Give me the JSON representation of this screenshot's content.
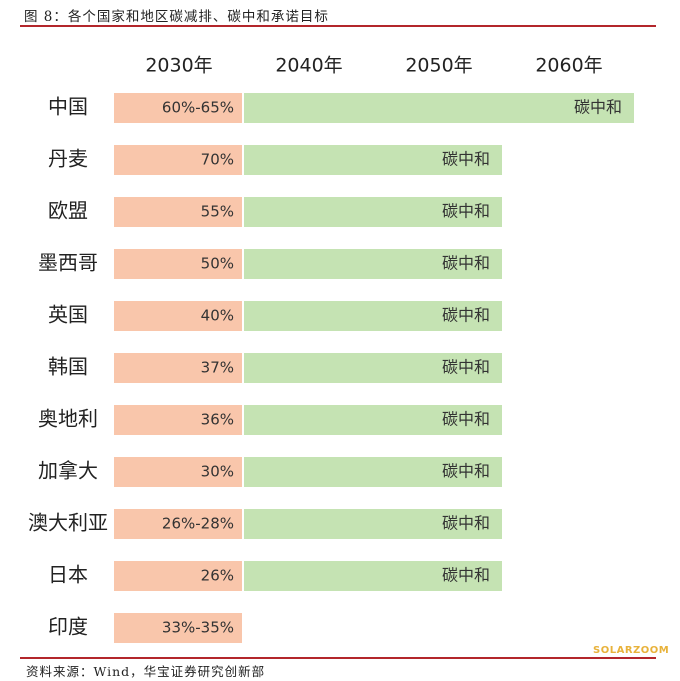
{
  "caption": "图 8：各个国家和地区碳减排、碳中和承诺目标",
  "source": "资料来源：Wind，华宝证券研究创新部",
  "watermark": "SOLARZOOM",
  "colors": {
    "target_2030": "#f9c6ab",
    "neutral": "#c5e3b3",
    "rule": "#b3262b"
  },
  "chart_data": {
    "type": "table",
    "columns": [
      "2030年",
      "2040年",
      "2050年",
      "2060年"
    ],
    "rows": [
      {
        "country": "中国",
        "target_2030": "60%-65%",
        "neutral_label": "碳中和",
        "neutral_year": 2060
      },
      {
        "country": "丹麦",
        "target_2030": "70%",
        "neutral_label": "碳中和",
        "neutral_year": 2050
      },
      {
        "country": "欧盟",
        "target_2030": "55%",
        "neutral_label": "碳中和",
        "neutral_year": 2050
      },
      {
        "country": "墨西哥",
        "target_2030": "50%",
        "neutral_label": "碳中和",
        "neutral_year": 2050
      },
      {
        "country": "英国",
        "target_2030": "40%",
        "neutral_label": "碳中和",
        "neutral_year": 2050
      },
      {
        "country": "韩国",
        "target_2030": "37%",
        "neutral_label": "碳中和",
        "neutral_year": 2050
      },
      {
        "country": "奥地利",
        "target_2030": "36%",
        "neutral_label": "碳中和",
        "neutral_year": 2050
      },
      {
        "country": "加拿大",
        "target_2030": "30%",
        "neutral_label": "碳中和",
        "neutral_year": 2050
      },
      {
        "country": "澳大利亚",
        "target_2030": "26%-28%",
        "neutral_label": "碳中和",
        "neutral_year": 2050
      },
      {
        "country": "日本",
        "target_2030": "26%",
        "neutral_label": "碳中和",
        "neutral_year": 2050
      },
      {
        "country": "印度",
        "target_2030": "33%-35%",
        "neutral_label": "",
        "neutral_year": null
      }
    ]
  }
}
